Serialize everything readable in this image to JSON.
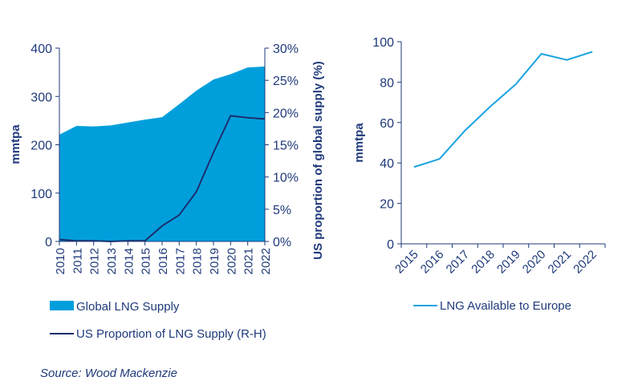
{
  "colors": {
    "area": "#009fdc",
    "us_line": "#1a2f6e",
    "europe_line": "#1aa3e0",
    "text": "#1f3a7a"
  },
  "source": "Source: Wood Mackenzie",
  "chart_data": [
    {
      "type": "area",
      "categories": [
        "2010",
        "2011",
        "2012",
        "2013",
        "2014",
        "2015",
        "2016",
        "2017",
        "2018",
        "2019",
        "2020",
        "2021",
        "2022"
      ],
      "ylabel": "mmtpa",
      "y2label": "US proportion of global supply (%)",
      "ylim": [
        0,
        400
      ],
      "yticks": [
        "0",
        "100",
        "200",
        "300",
        "400"
      ],
      "y2lim": [
        0,
        30
      ],
      "y2ticks": [
        "0%",
        "5%",
        "10%",
        "15%",
        "20%",
        "25%",
        "30%"
      ],
      "grid": false,
      "legend_placement": "bottom",
      "series": [
        {
          "name": "Global LNG Supply",
          "type": "area",
          "axis": "left",
          "values": [
            221,
            239,
            238,
            240,
            246,
            252,
            257,
            284,
            312,
            335,
            346,
            360,
            362
          ]
        },
        {
          "name": "US Proportion of LNG Supply (R-H)",
          "type": "line",
          "axis": "right",
          "values": [
            0.3,
            0.1,
            0.1,
            0.0,
            0.1,
            0.1,
            2.4,
            4.1,
            7.7,
            13.8,
            19.5,
            19.2,
            19.0
          ]
        }
      ]
    },
    {
      "type": "line",
      "categories": [
        "2015",
        "2016",
        "2017",
        "2018",
        "2019",
        "2020",
        "2021",
        "2022"
      ],
      "ylabel": "mmtpa",
      "ylim": [
        0,
        100
      ],
      "yticks": [
        "0",
        "20",
        "40",
        "60",
        "80",
        "100"
      ],
      "grid": false,
      "legend_placement": "bottom",
      "series": [
        {
          "name": "LNG Available to Europe",
          "values": [
            38,
            42,
            56,
            68,
            79,
            94,
            91,
            95
          ]
        }
      ]
    }
  ]
}
